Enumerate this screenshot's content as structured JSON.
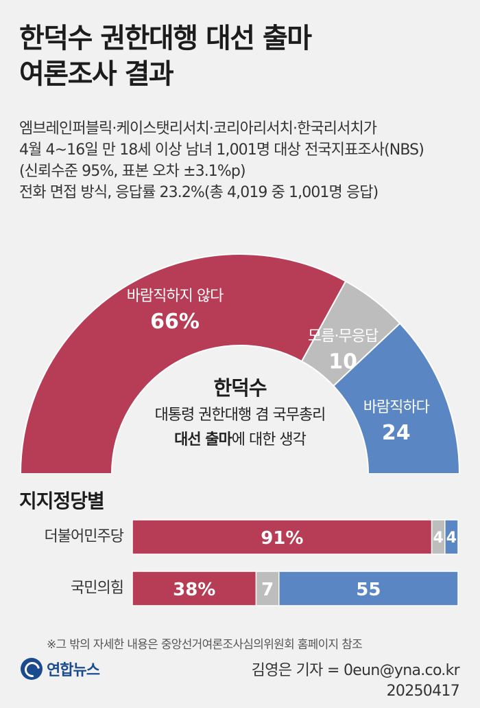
{
  "title_lines": [
    "한덕수 권한대행 대선 출마",
    "여론조사 결과"
  ],
  "description": [
    "엠브레인퍼블릭·케이스탯리서치·코리아리서치·한국리서치가",
    "4월 4~16일 만 18세 이상 남녀 1,001명 대상 전국지표조사(NBS)",
    "(신뢰수준 95%, 표본 오차 ±3.1%p)",
    "전화 면접 방식, 응답률 23.2%(총 4,019 중 1,001명 응답)"
  ],
  "center_caption": {
    "name": "한덕수",
    "line2": "대통령 권한대행 겸 국무총리",
    "line3_bold": "대선 출마",
    "line3_rest": "에 대한 생각"
  },
  "colors": {
    "negative": "#b63d55",
    "neutral": "#bdbdbd",
    "positive": "#5b86c4",
    "background": "#f1f1f1"
  },
  "chart_data": [
    {
      "type": "pie",
      "style": "half-donut",
      "slices": [
        {
          "label": "바람직하지 않다",
          "value": 66,
          "value_label": "66%",
          "color": "#b63d55"
        },
        {
          "label": "모름·무응답",
          "value": 10,
          "value_label": "10",
          "color": "#bdbdbd"
        },
        {
          "label": "바람직하다",
          "value": 24,
          "value_label": "24",
          "color": "#5b86c4"
        }
      ]
    },
    {
      "type": "bar",
      "orientation": "horizontal",
      "stacked": true,
      "title": "지지정당별",
      "categories": [
        "더불어민주당",
        "국민의힘"
      ],
      "series": [
        {
          "name": "바람직하지 않다",
          "values": [
            91,
            38
          ],
          "value_labels": [
            "91%",
            "38%"
          ],
          "color": "#b63d55"
        },
        {
          "name": "모름·무응답",
          "values": [
            4,
            7
          ],
          "value_labels": [
            "4",
            "7"
          ],
          "color": "#bdbdbd"
        },
        {
          "name": "바람직하다",
          "values": [
            4,
            55
          ],
          "value_labels": [
            "4",
            "55"
          ],
          "color": "#5b86c4"
        }
      ]
    }
  ],
  "footnote": "※그 밖의 자세한 내용은 중앙선거여론조사심의위원회 홈페이지 참조",
  "logo_text": "연합뉴스",
  "credit_line1": "김영은 기자 = 0eun@yna.co.kr",
  "credit_line2": "20250417"
}
